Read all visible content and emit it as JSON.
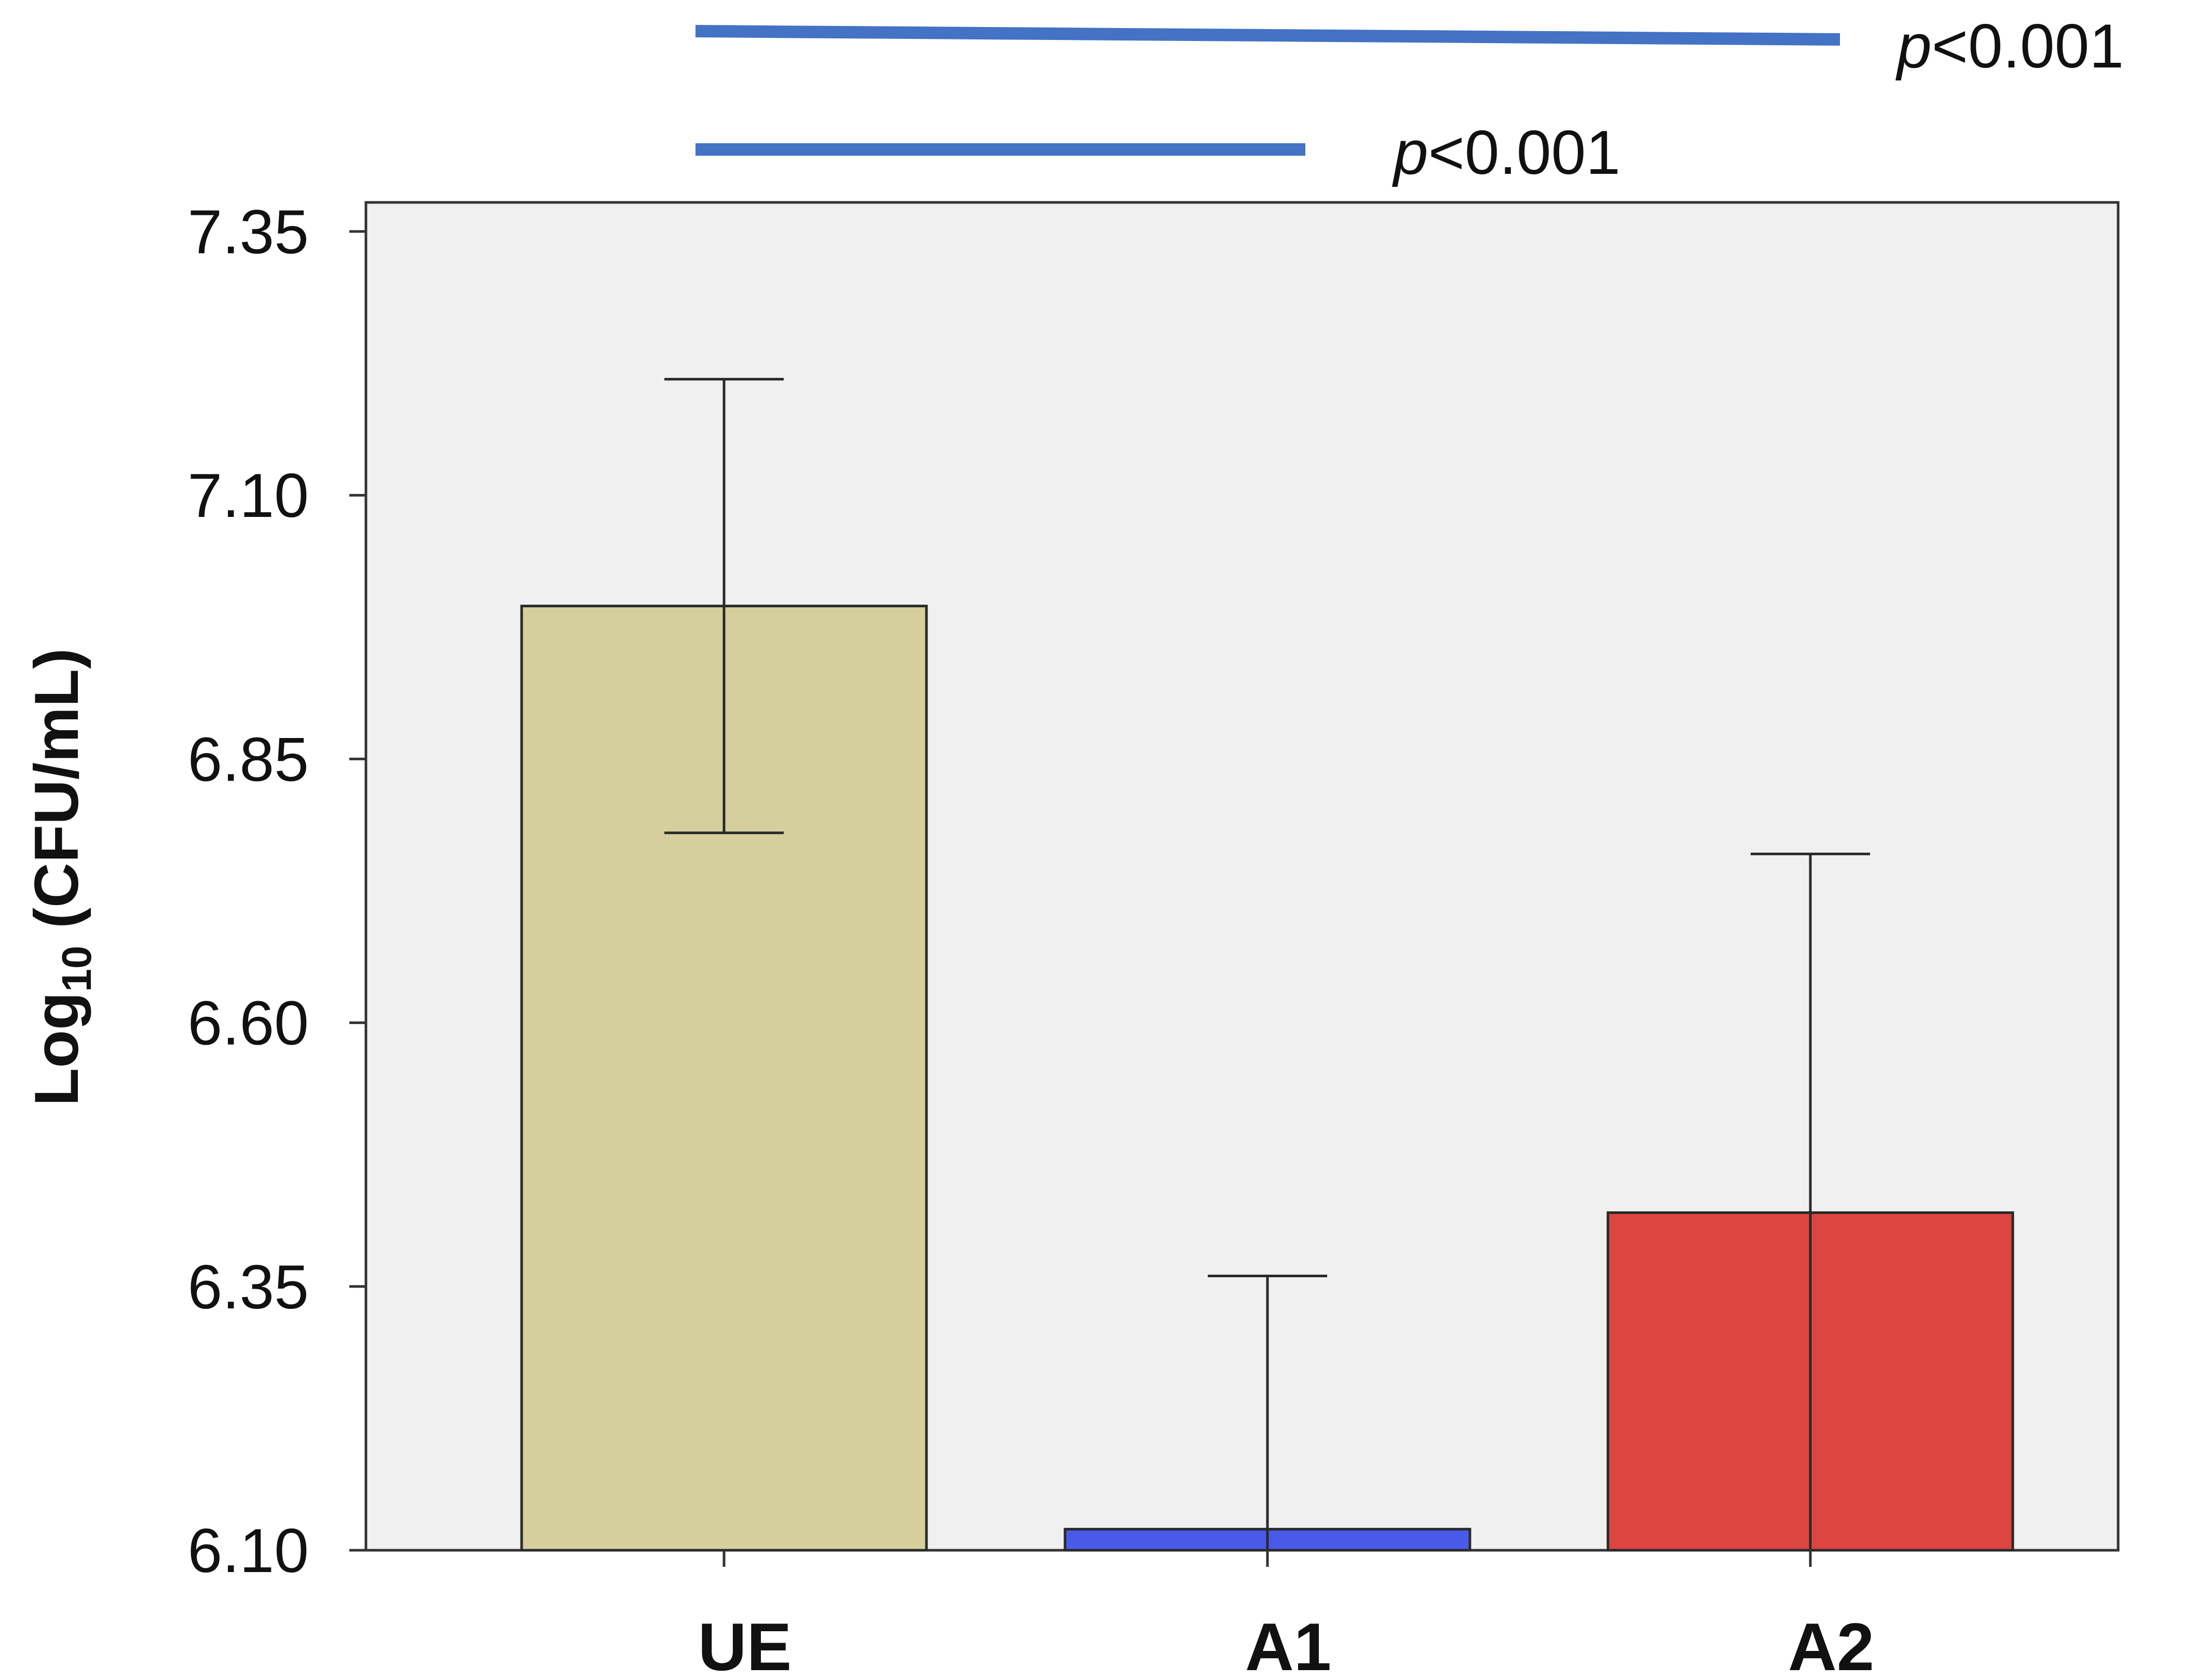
{
  "chart_data": {
    "type": "bar",
    "title": "",
    "xlabel": "",
    "ylabel": {
      "prefix": "Log",
      "subscript": "10",
      "suffix": " (CFU/mL)"
    },
    "ylim": [
      6.1,
      7.35
    ],
    "yticks": [
      "6.10",
      "6.35",
      "6.60",
      "6.85",
      "7.10",
      "7.35"
    ],
    "grid": false,
    "categories": [
      "UE",
      "A1",
      "A2"
    ],
    "values": [
      6.995,
      6.12,
      6.42
    ],
    "error_upper": [
      7.21,
      6.36,
      6.76
    ],
    "error_lower": [
      6.78,
      6.1,
      6.1
    ],
    "colors": [
      "#d4cf9c",
      "#4a5ae8",
      "#dd4541"
    ],
    "significance": [
      {
        "from": "UE",
        "to": "A2",
        "label_italic": "p",
        "label_rest": "<0.001",
        "color": "#4472c4"
      },
      {
        "from": "UE",
        "to": "A1",
        "label_italic": "p",
        "label_rest": "<0.001",
        "color": "#4472c4"
      }
    ]
  }
}
